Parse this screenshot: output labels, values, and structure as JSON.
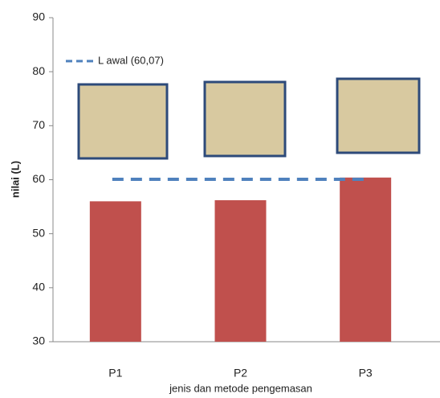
{
  "chart_data": {
    "type": "bar",
    "categories": [
      "P1",
      "P2",
      "P3"
    ],
    "values": [
      56,
      56.2,
      60.4
    ],
    "color": "#c0504d",
    "ylim": [
      30,
      90
    ],
    "yticks": [
      30,
      40,
      50,
      60,
      70,
      80,
      90
    ],
    "ylabel": "nilai (L)",
    "xlabel": "jenis dan metode pengemasan",
    "reference_line": {
      "name": "L awal (60,07)",
      "value": 60.07,
      "color": "#4f81bd"
    },
    "legend": "top-left",
    "grid": false
  }
}
